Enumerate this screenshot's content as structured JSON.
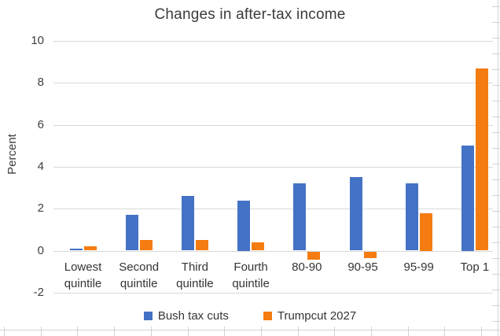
{
  "title": "Changes in after-tax income",
  "y_axis": {
    "label": "Percent"
  },
  "chart_data": {
    "type": "bar",
    "title": "Changes in after-tax income",
    "xlabel": "",
    "ylabel": "Percent",
    "ylim": [
      -2,
      10
    ],
    "yticks": [
      10,
      8,
      6,
      4,
      2,
      0,
      -2
    ],
    "grid": true,
    "legend_position": "bottom",
    "categories": [
      "Lowest quintile",
      "Second quintile",
      "Third quintile",
      "Fourth quintile",
      "80-90",
      "90-95",
      "95-99",
      "Top 1"
    ],
    "category_label_lines": [
      [
        "Lowest",
        "quintile"
      ],
      [
        "Second",
        "quintile"
      ],
      [
        "Third",
        "quintile"
      ],
      [
        "Fourth",
        "quintile"
      ],
      [
        "80-90"
      ],
      [
        "90-95"
      ],
      [
        "95-99"
      ],
      [
        "Top 1"
      ]
    ],
    "series": [
      {
        "name": "Bush tax cuts",
        "color": "#4472C4",
        "values": [
          0.1,
          1.7,
          2.6,
          2.4,
          3.2,
          3.5,
          3.2,
          5.0
        ]
      },
      {
        "name": "Trumpcut 2027",
        "color": "#F57C10",
        "values": [
          0.2,
          0.5,
          0.5,
          0.4,
          -0.4,
          -0.3,
          1.8,
          8.7
        ]
      }
    ]
  },
  "colors": {
    "grid": "#d9d9d9",
    "ruler": "#d2d2d2",
    "title_text": "#3b3b3b",
    "axis_text": "#404040"
  }
}
